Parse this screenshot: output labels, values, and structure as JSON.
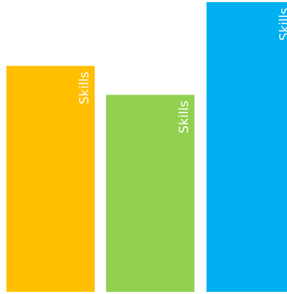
{
  "chart_data": {
    "type": "bar",
    "orientation": "vertical",
    "categories": [
      "Skills",
      "Skills",
      "Skills"
    ],
    "values": [
      78,
      68,
      100
    ],
    "colors": [
      "#FFBF00",
      "#92D050",
      "#00B0F0"
    ],
    "data_labels": [
      "Skills",
      "Skills",
      "Skills"
    ],
    "ylim": [
      0,
      100
    ],
    "grid": false,
    "legend": "none",
    "axes_visible": false
  }
}
